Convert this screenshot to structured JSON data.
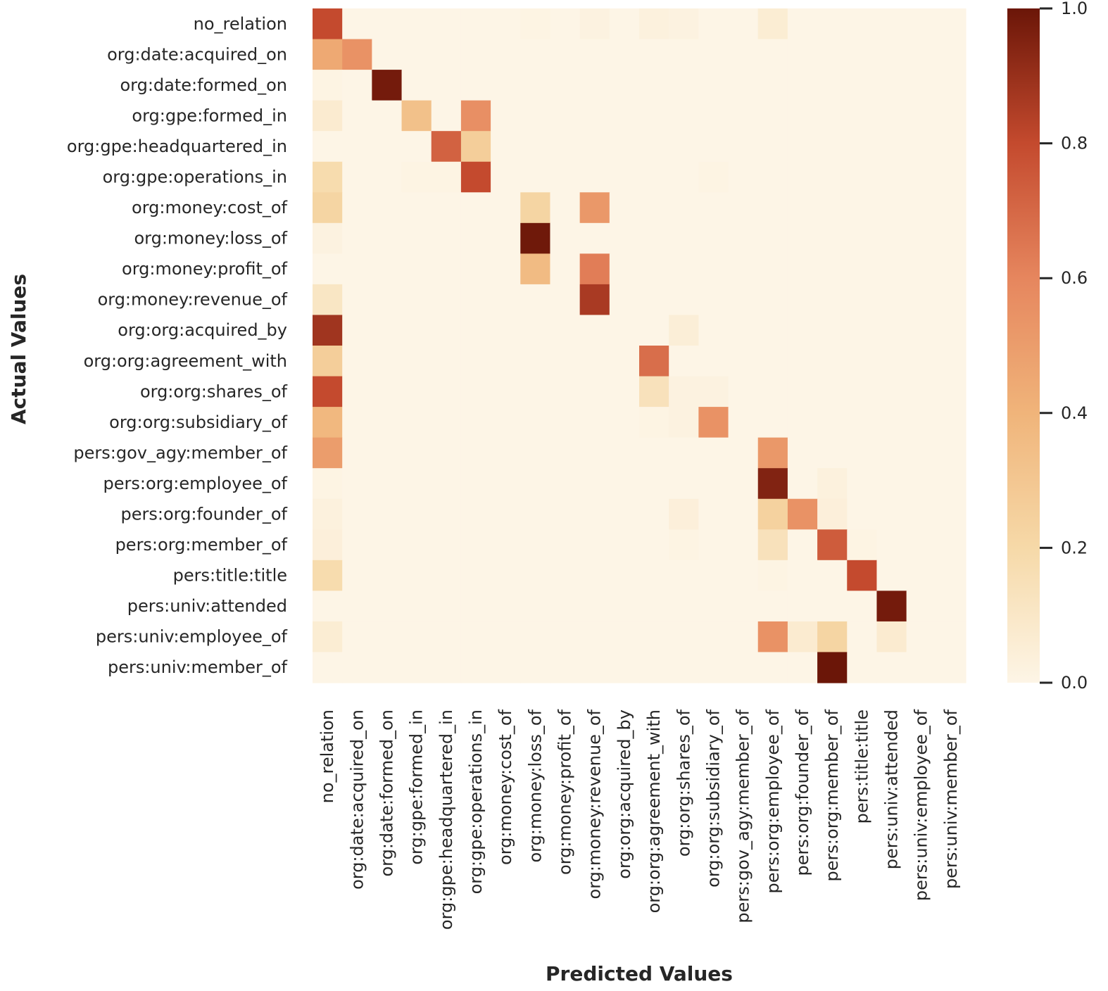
{
  "chart_data": {
    "type": "heatmap",
    "title": "",
    "xlabel": "Predicted Values",
    "ylabel": "Actual Values",
    "x_categories": [
      "no_relation",
      "org:date:acquired_on",
      "org:date:formed_on",
      "org:gpe:formed_in",
      "org:gpe:headquartered_in",
      "org:gpe:operations_in",
      "org:money:cost_of",
      "org:money:loss_of",
      "org:money:profit_of",
      "org:money:revenue_of",
      "org:org:acquired_by",
      "org:org:agreement_with",
      "org:org:shares_of",
      "org:org:subsidiary_of",
      "pers:gov_agy:member_of",
      "pers:org:employee_of",
      "pers:org:founder_of",
      "pers:org:member_of",
      "pers:title:title",
      "pers:univ:attended",
      "pers:univ:employee_of",
      "pers:univ:member_of"
    ],
    "y_categories": [
      "no_relation",
      "org:date:acquired_on",
      "org:date:formed_on",
      "org:gpe:formed_in",
      "org:gpe:headquartered_in",
      "org:gpe:operations_in",
      "org:money:cost_of",
      "org:money:loss_of",
      "org:money:profit_of",
      "org:money:revenue_of",
      "org:org:acquired_by",
      "org:org:agreement_with",
      "org:org:shares_of",
      "org:org:subsidiary_of",
      "pers:gov_agy:member_of",
      "pers:org:employee_of",
      "pers:org:founder_of",
      "pers:org:member_of",
      "pers:title:title",
      "pers:univ:attended",
      "pers:univ:employee_of",
      "pers:univ:member_of"
    ],
    "values": [
      [
        0.8,
        0,
        0,
        0,
        0,
        0,
        0,
        0.01,
        0,
        0.02,
        0,
        0.03,
        0.02,
        0,
        0,
        0.06,
        0,
        0,
        0,
        0,
        0,
        0
      ],
      [
        0.45,
        0.55,
        0,
        0,
        0,
        0,
        0,
        0,
        0,
        0,
        0,
        0,
        0,
        0,
        0,
        0,
        0,
        0,
        0,
        0,
        0,
        0
      ],
      [
        0.01,
        0,
        0.98,
        0,
        0,
        0,
        0,
        0,
        0,
        0,
        0,
        0,
        0,
        0,
        0,
        0,
        0,
        0,
        0,
        0,
        0,
        0
      ],
      [
        0.07,
        0,
        0,
        0.33,
        0,
        0.56,
        0,
        0,
        0,
        0,
        0,
        0,
        0,
        0,
        0,
        0,
        0,
        0,
        0,
        0,
        0,
        0
      ],
      [
        0,
        0,
        0,
        0,
        0.72,
        0.26,
        0,
        0,
        0,
        0,
        0,
        0,
        0,
        0,
        0,
        0,
        0,
        0,
        0,
        0,
        0,
        0
      ],
      [
        0.18,
        0,
        0,
        0.01,
        0.01,
        0.8,
        0,
        0,
        0,
        0,
        0,
        0,
        0,
        0.01,
        0,
        0,
        0,
        0,
        0,
        0,
        0,
        0
      ],
      [
        0.22,
        0,
        0,
        0,
        0,
        0,
        0,
        0.22,
        0,
        0.52,
        0,
        0,
        0,
        0,
        0,
        0,
        0,
        0,
        0,
        0,
        0,
        0
      ],
      [
        0.02,
        0,
        0,
        0,
        0,
        0,
        0,
        0.99,
        0,
        0,
        0,
        0,
        0,
        0,
        0,
        0,
        0,
        0,
        0,
        0,
        0,
        0
      ],
      [
        0,
        0,
        0,
        0,
        0,
        0,
        0,
        0.36,
        0,
        0.63,
        0,
        0,
        0,
        0,
        0,
        0,
        0,
        0,
        0,
        0,
        0,
        0
      ],
      [
        0.11,
        0,
        0,
        0,
        0,
        0,
        0,
        0,
        0,
        0.86,
        0,
        0,
        0,
        0,
        0,
        0,
        0,
        0,
        0,
        0,
        0,
        0
      ],
      [
        0.88,
        0,
        0,
        0,
        0,
        0,
        0,
        0,
        0,
        0,
        0,
        0,
        0.05,
        0,
        0,
        0,
        0,
        0,
        0,
        0,
        0,
        0
      ],
      [
        0.26,
        0,
        0,
        0,
        0,
        0,
        0,
        0,
        0,
        0,
        0,
        0.68,
        0,
        0,
        0,
        0,
        0,
        0,
        0,
        0,
        0,
        0
      ],
      [
        0.8,
        0,
        0,
        0,
        0,
        0,
        0,
        0,
        0,
        0,
        0,
        0.14,
        0.02,
        0.02,
        0,
        0,
        0,
        0,
        0,
        0,
        0,
        0
      ],
      [
        0.38,
        0,
        0,
        0,
        0,
        0,
        0,
        0,
        0,
        0,
        0,
        0.01,
        0.02,
        0.55,
        0,
        0,
        0,
        0,
        0,
        0,
        0,
        0
      ],
      [
        0.5,
        0,
        0,
        0,
        0,
        0,
        0,
        0,
        0,
        0,
        0,
        0,
        0,
        0,
        0,
        0.52,
        0,
        0,
        0,
        0,
        0,
        0
      ],
      [
        0.01,
        0,
        0,
        0,
        0,
        0,
        0,
        0,
        0,
        0,
        0,
        0,
        0,
        0,
        0,
        0.95,
        0,
        0.03,
        0,
        0,
        0,
        0
      ],
      [
        0.03,
        0,
        0,
        0,
        0,
        0,
        0,
        0,
        0,
        0,
        0,
        0,
        0.04,
        0,
        0,
        0.24,
        0.55,
        0.04,
        0,
        0,
        0,
        0
      ],
      [
        0.04,
        0,
        0,
        0,
        0,
        0,
        0,
        0,
        0,
        0,
        0,
        0,
        0.01,
        0,
        0,
        0.14,
        0,
        0.74,
        0.01,
        0,
        0,
        0
      ],
      [
        0.18,
        0,
        0,
        0,
        0,
        0,
        0,
        0,
        0,
        0,
        0,
        0,
        0,
        0,
        0,
        0.01,
        0,
        0,
        0.8,
        0,
        0,
        0
      ],
      [
        0,
        0,
        0,
        0,
        0,
        0,
        0,
        0,
        0,
        0,
        0,
        0,
        0,
        0,
        0,
        0,
        0,
        0,
        0,
        0.98,
        0,
        0
      ],
      [
        0.06,
        0,
        0,
        0,
        0,
        0,
        0,
        0,
        0,
        0,
        0,
        0,
        0,
        0,
        0,
        0.55,
        0.07,
        0.22,
        0,
        0.07,
        0,
        0
      ],
      [
        0,
        0,
        0,
        0,
        0,
        0,
        0,
        0,
        0,
        0,
        0,
        0,
        0,
        0,
        0,
        0,
        0,
        1.0,
        0,
        0,
        0,
        0
      ]
    ],
    "vmin": 0.0,
    "vmax": 1.0,
    "colormap": "Oranges-like (light cream to dark brown)",
    "colorbar_ticks": [
      0.0,
      0.2,
      0.4,
      0.6,
      0.8,
      1.0
    ],
    "colorbar_tick_labels": [
      "0.0",
      "0.2",
      "0.4",
      "0.6",
      "0.8",
      "1.0"
    ],
    "colorbar_stops": [
      "#fdf5e6",
      "#f6d9a8",
      "#f0b47a",
      "#e6865e",
      "#c44a2e",
      "#6b1608"
    ]
  }
}
